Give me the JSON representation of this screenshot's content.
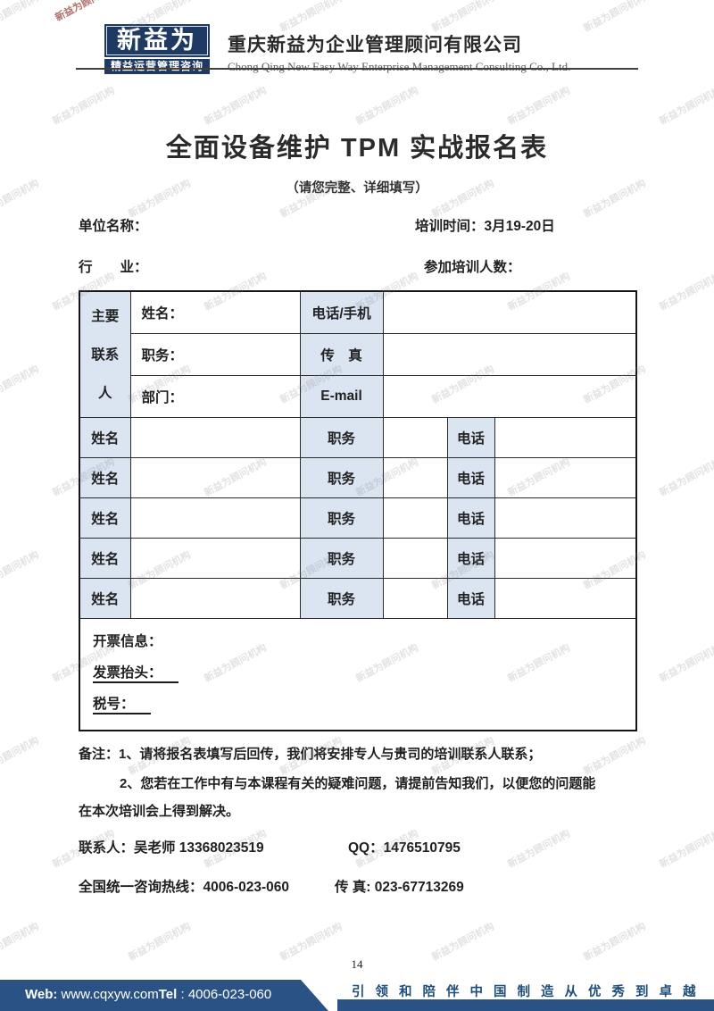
{
  "watermark": {
    "text": "新益为顾问机构"
  },
  "header": {
    "logo_main": "新益为",
    "logo_tagline": "精益运营管理咨询",
    "company_cn": "重庆新益为企业管理顾问有限公司",
    "company_en": "Chong Qing New Easy Way Enterprise Management Consulting Co., Ltd."
  },
  "doc": {
    "title": "全面设备维护 TPM 实战报名表",
    "subtitle": "（请您完整、详细填写）"
  },
  "form": {
    "company_label": "单位名称：",
    "training_time": "培训时间：3月19-20日",
    "industry_label": "行　　业：",
    "attendees_label": "参加培训人数："
  },
  "table": {
    "primary_contact_lines": [
      "主要",
      "联系",
      "人"
    ],
    "contact_rows": [
      {
        "label": "姓名：",
        "field": "电话/手机"
      },
      {
        "label": "职务：",
        "field": "传　真"
      },
      {
        "label": "部门：",
        "field": "E-mail"
      }
    ],
    "attendee_rows": [
      {
        "name": "姓名",
        "title": "职务",
        "phone": "电话"
      },
      {
        "name": "姓名",
        "title": "职务",
        "phone": "电话"
      },
      {
        "name": "姓名",
        "title": "职务",
        "phone": "电话"
      },
      {
        "name": "姓名",
        "title": "职务",
        "phone": "电话"
      },
      {
        "name": "姓名",
        "title": "职务",
        "phone": "电话"
      }
    ],
    "invoice": {
      "info_label": "开票信息：",
      "title_label": "发票抬头：",
      "tax_label": "税号："
    }
  },
  "remarks": {
    "line1": "备注：1、请将报名表填写后回传，我们将安排专人与贵司的培训联系人联系；",
    "line2": "2、您若在工作中有与本课程有关的疑难问题，请提前告知我们，以便您的问题能",
    "line3": "在本次培训会上得到解决。"
  },
  "contact": {
    "person": "联系人：吴老师 13368023519",
    "qq": "QQ：1476510795",
    "hotline": "全国统一咨询热线：4006-023-060",
    "fax": "传 真: 023-67713269"
  },
  "footer": {
    "page_number": "14",
    "web_label": "Web:",
    "web_value": " www.cqxyw.com",
    "tel_label": "Tel",
    "tel_value": " : 4006-023-060",
    "slogan": "引领和陪伴中国制造从优秀到卓越"
  },
  "colors": {
    "footer_navy": "#2a5285",
    "logo_navy": "#1e3a63",
    "table_header_blue": "#dbe5f1",
    "slogan_blue": "#1f4e79"
  }
}
